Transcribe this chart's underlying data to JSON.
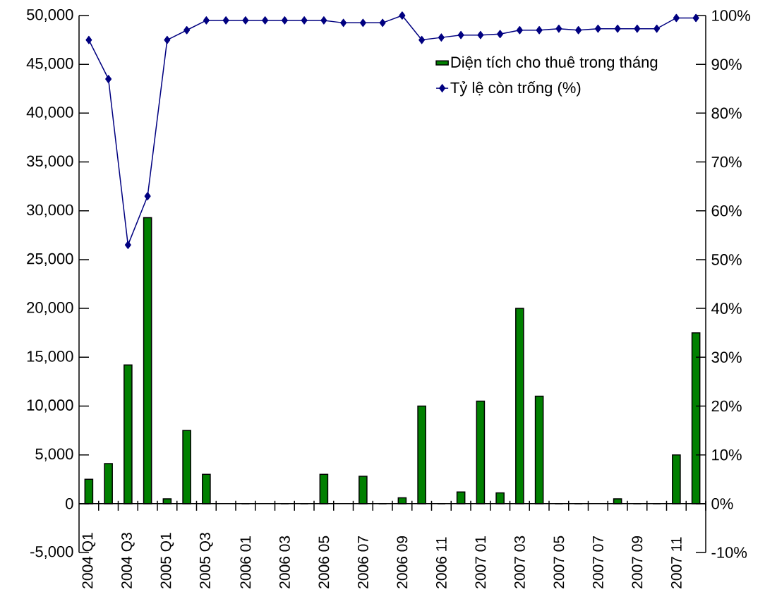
{
  "chart_data": {
    "type": "bar",
    "categories": [
      "2004 Q1",
      null,
      "2004 Q3",
      null,
      "2005 Q1",
      null,
      "2005 Q3",
      null,
      "2006 01",
      null,
      "2006 03",
      null,
      "2006 05",
      null,
      "2006 07",
      null,
      "2006 09",
      null,
      "2006 11",
      null,
      "2007 01",
      null,
      "2007 03",
      null,
      "2007 05",
      null,
      "2007 07",
      null,
      "2007 09",
      null,
      "2007 11",
      null
    ],
    "series": [
      {
        "name": "Diện tích cho thuê trong tháng",
        "type": "bar",
        "color": "#008000",
        "values": [
          2500,
          4100,
          14200,
          29300,
          500,
          7500,
          3000,
          null,
          0,
          null,
          0,
          0,
          3000,
          null,
          2800,
          0,
          600,
          10000,
          0,
          1200,
          10500,
          1100,
          20000,
          11000,
          0,
          0,
          null,
          500,
          0,
          0,
          5000,
          17500
        ]
      },
      {
        "name": "Tỷ lệ còn trống (%)",
        "type": "line",
        "axis": "y2",
        "color": "#000080",
        "marker": "diamond",
        "line_style": "solid",
        "values": [
          95,
          87,
          53,
          63,
          95,
          97,
          99,
          99,
          99,
          99,
          99,
          99,
          99,
          98.5,
          98.5,
          98.5,
          100,
          95,
          95.5,
          96,
          96,
          96.2,
          97,
          97,
          97.3,
          97,
          97.3,
          97.3,
          97.3,
          97.3,
          99.5,
          99.5
        ]
      }
    ],
    "ylim": [
      -5000,
      50000
    ],
    "yticks": [
      {
        "value": -5000,
        "label": "-5,000"
      },
      0,
      {
        "value": 5000,
        "label": "5,000"
      },
      {
        "value": 10000,
        "label": "10,000"
      },
      {
        "value": 15000,
        "label": "15,000"
      },
      {
        "value": 20000,
        "label": "20,000"
      },
      {
        "value": 25000,
        "label": "25,000"
      },
      {
        "value": 30000,
        "label": "30,000"
      },
      {
        "value": 35000,
        "label": "35,000"
      },
      {
        "value": 40000,
        "label": "40,000"
      },
      {
        "value": 45000,
        "label": "45,000"
      },
      {
        "value": 50000,
        "label": "50,000"
      }
    ],
    "y2lim": [
      -10,
      100
    ],
    "y2ticks": [
      {
        "value": -10,
        "label": "-10%"
      },
      {
        "value": 0,
        "label": "0%"
      },
      {
        "value": 10,
        "label": "10%"
      },
      {
        "value": 20,
        "label": "20%"
      },
      {
        "value": 30,
        "label": "30%"
      },
      {
        "value": 40,
        "label": "40%"
      },
      {
        "value": 50,
        "label": "50%"
      },
      {
        "value": 60,
        "label": "60%"
      },
      {
        "value": 70,
        "label": "70%"
      },
      {
        "value": 80,
        "label": "80%"
      },
      {
        "value": 90,
        "label": "90%"
      },
      {
        "value": 100,
        "label": "100%"
      }
    ],
    "legend": "top right"
  }
}
